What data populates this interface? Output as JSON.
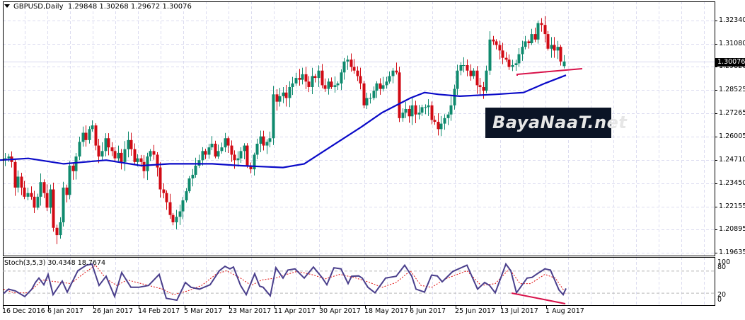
{
  "header": {
    "symbol": "GBPUSD,Daily",
    "ohlc": "1.29848 1.30268 1.29672 1.30076"
  },
  "current_price": "1.30076",
  "watermark": "BayaNaaT.net",
  "stochastic": {
    "label": "Stoch(3,5,3) 30.4348 18.7674",
    "levels": [
      "100",
      "80",
      "20",
      "0"
    ]
  },
  "y_axis_labels": [
    "1.32340",
    "1.31080",
    "1.29820",
    "1.28525",
    "1.27265",
    "1.26005",
    "1.24710",
    "1.23450",
    "1.22155",
    "1.20895",
    "1.19635"
  ],
  "x_axis_labels": [
    "16 Dec 2016",
    "6 Jan 2017",
    "26 Jan 2017",
    "14 Feb 2017",
    "5 Mar 2017",
    "23 Mar 2017",
    "11 Apr 2017",
    "30 Apr 2017",
    "18 May 2017",
    "6 Jun 2017",
    "25 Jun 2017",
    "13 Jul 2017",
    "1 Aug 2017"
  ],
  "colors": {
    "bull": "#0f8a6e",
    "bear": "#d10a14",
    "ma": "#0a0ac8",
    "stoch_main": "#4a3f8c",
    "stoch_signal": "#e01010",
    "trendline": "#d8124a",
    "grid": "#dcdcf0"
  },
  "chart_data": [
    {
      "type": "candlestick",
      "title": "GBPUSD,Daily",
      "ylabel": "Price",
      "ylim": [
        1.19635,
        1.3297
      ],
      "x_ticks": [
        "16 Dec 2016",
        "6 Jan 2017",
        "26 Jan 2017",
        "14 Feb 2017",
        "5 Mar 2017",
        "23 Mar 2017",
        "11 Apr 2017",
        "30 Apr 2017",
        "18 May 2017",
        "6 Jun 2017",
        "25 Jun 2017",
        "13 Jul 2017",
        "1 Aug 2017"
      ],
      "y_ticks": [
        1.3234,
        1.3108,
        1.2982,
        1.28525,
        1.27265,
        1.26005,
        1.2471,
        1.2345,
        1.22155,
        1.20895,
        1.19635
      ],
      "last_ohlc": {
        "open": 1.29848,
        "high": 1.30268,
        "low": 1.29672,
        "close": 1.30076
      },
      "closes_approx": [
        1.248,
        1.249,
        1.246,
        1.232,
        1.238,
        1.232,
        1.227,
        1.229,
        1.227,
        1.221,
        1.227,
        1.235,
        1.229,
        1.221,
        1.231,
        1.21,
        1.206,
        1.213,
        1.232,
        1.228,
        1.244,
        1.241,
        1.249,
        1.257,
        1.262,
        1.258,
        1.264,
        1.266,
        1.255,
        1.249,
        1.252,
        1.259,
        1.254,
        1.252,
        1.248,
        1.251,
        1.246,
        1.253,
        1.258,
        1.253,
        1.246,
        1.248,
        1.246,
        1.241,
        1.249,
        1.252,
        1.25,
        1.243,
        1.231,
        1.229,
        1.224,
        1.217,
        1.213,
        1.216,
        1.219,
        1.225,
        1.23,
        1.237,
        1.239,
        1.244,
        1.247,
        1.252,
        1.25,
        1.254,
        1.256,
        1.249,
        1.252,
        1.254,
        1.259,
        1.255,
        1.25,
        1.247,
        1.248,
        1.252,
        1.255,
        1.244,
        1.242,
        1.25,
        1.256,
        1.26,
        1.255,
        1.257,
        1.259,
        1.283,
        1.279,
        1.282,
        1.284,
        1.281,
        1.287,
        1.289,
        1.292,
        1.291,
        1.294,
        1.29,
        1.287,
        1.293,
        1.292,
        1.296,
        1.288,
        1.286,
        1.29,
        1.287,
        1.288,
        1.289,
        1.295,
        1.301,
        1.302,
        1.298,
        1.296,
        1.293,
        1.289,
        1.277,
        1.281,
        1.281,
        1.285,
        1.289,
        1.286,
        1.288,
        1.29,
        1.293,
        1.296,
        1.295,
        1.27,
        1.273,
        1.275,
        1.271,
        1.277,
        1.272,
        1.273,
        1.276,
        1.276,
        1.277,
        1.269,
        1.268,
        1.264,
        1.267,
        1.27,
        1.272,
        1.277,
        1.286,
        1.296,
        1.299,
        1.299,
        1.296,
        1.293,
        1.296,
        1.288,
        1.287,
        1.285,
        1.296,
        1.313,
        1.312,
        1.31,
        1.307,
        1.303,
        1.302,
        1.298,
        1.299,
        1.3,
        1.305,
        1.309,
        1.312,
        1.311,
        1.316,
        1.313,
        1.322,
        1.321,
        1.316,
        1.308,
        1.31,
        1.307,
        1.309,
        1.301,
        1.301
      ]
    },
    {
      "type": "line",
      "title": "Moving Average (blue)",
      "points_approx": [
        [
          0,
          1.247
        ],
        [
          40,
          1.248
        ],
        [
          90,
          1.245
        ],
        [
          120,
          1.246
        ],
        [
          150,
          1.247
        ],
        [
          200,
          1.244
        ],
        [
          240,
          1.245
        ],
        [
          300,
          1.245
        ],
        [
          340,
          1.244
        ],
        [
          400,
          1.243
        ],
        [
          430,
          1.245
        ],
        [
          470,
          1.255
        ],
        [
          510,
          1.265
        ],
        [
          540,
          1.273
        ],
        [
          580,
          1.281
        ],
        [
          600,
          1.284
        ],
        [
          620,
          1.283
        ],
        [
          650,
          1.282
        ],
        [
          700,
          1.283
        ],
        [
          740,
          1.284
        ],
        [
          770,
          1.289
        ],
        [
          800,
          1.2935
        ]
      ]
    },
    {
      "type": "line",
      "title": "Stoch(3,5,3)",
      "series": [
        {
          "name": "main",
          "last": 30.4348
        },
        {
          "name": "signal",
          "last": 18.7674
        }
      ],
      "ylim": [
        0,
        100
      ],
      "levels": [
        20,
        80
      ]
    }
  ]
}
